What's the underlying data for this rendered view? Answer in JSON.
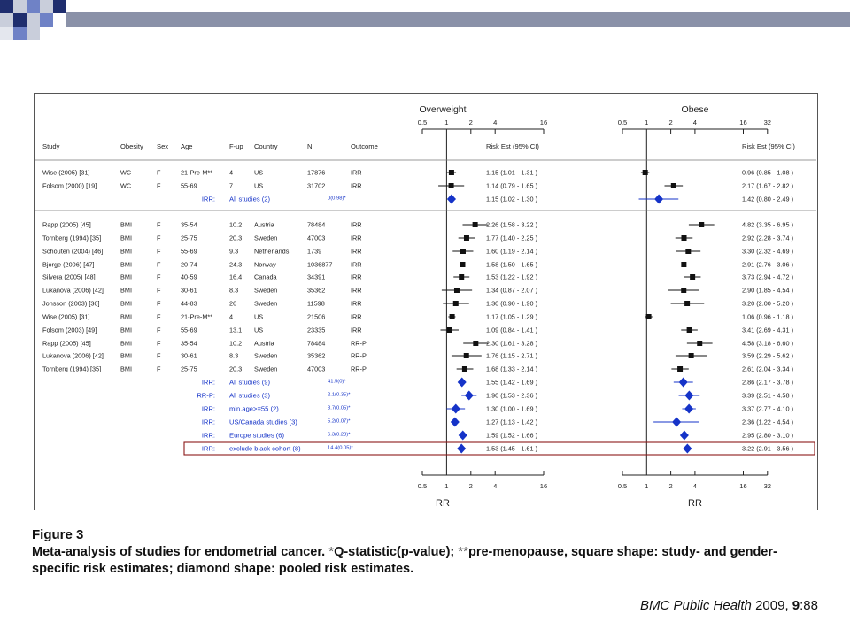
{
  "colors": {
    "slide_navy": "#1f2e6e",
    "slide_blue": "#6f82c6",
    "slide_light": "#c9cedb",
    "text_dark": "#222222",
    "pooled_blue": "#1533c8",
    "highlight_box": "#8b1a1a"
  },
  "figure": {
    "panel_titles": [
      "Overweight",
      "Obese"
    ],
    "column_headers": {
      "study": "Study",
      "obesity": "Obesity",
      "sex": "Sex",
      "age": "Age",
      "fup": "F-up",
      "country": "Country",
      "n": "N",
      "outcome": "Outcome",
      "risk_ow": "Risk Est (95% CI)",
      "risk_ob": "Risk Est (95% CI)"
    },
    "axis_label": "RR",
    "caption_title": "Figure 3",
    "caption_lead": "Meta-analysis of studies for endometrial cancer.",
    "caption_star1": "*",
    "caption_mid": "Q-statistic(p-value);",
    "caption_star2": "**",
    "caption_rest": "pre-menopause, square shape: study- and gender- specific risk estimates; diamond shape: pooled risk estimates.",
    "citation_journal": "BMC Public Health",
    "citation_year": "2009,",
    "citation_vol": "9",
    "citation_pages": ":88"
  },
  "chart_data": {
    "type": "forest",
    "x_scale": "log",
    "axis_ticks": {
      "overweight": [
        0.5,
        1,
        2,
        4,
        16
      ],
      "obese": [
        0.5,
        1,
        2,
        4,
        16,
        32
      ]
    },
    "xlabel": "RR",
    "panels": [
      "Overweight",
      "Obese"
    ],
    "rows": [
      {
        "type": "study",
        "study": "Wise (2005) [31]",
        "obesity": "WC",
        "sex": "F",
        "age": "21-Pre-M**",
        "fup": "4",
        "country": "US",
        "n": "17876",
        "outcome": "IRR",
        "ow": {
          "est": 1.15,
          "lo": 1.01,
          "hi": 1.31,
          "text": "1.15  (1.01 - 1.31 )"
        },
        "ob": {
          "est": 0.96,
          "lo": 0.85,
          "hi": 1.08,
          "text": "0.96  (0.85 - 1.08 )"
        }
      },
      {
        "type": "study",
        "study": "Folsom (2000) [19]",
        "obesity": "WC",
        "sex": "F",
        "age": "55-69",
        "fup": "7",
        "country": "US",
        "n": "31702",
        "outcome": "IRR",
        "ow": {
          "est": 1.14,
          "lo": 0.79,
          "hi": 1.65,
          "text": "1.14  (0.79 - 1.65 )"
        },
        "ob": {
          "est": 2.17,
          "lo": 1.67,
          "hi": 2.82,
          "text": "2.17  (1.67 - 2.82 )"
        }
      },
      {
        "type": "pooled",
        "prefix": "IRR:",
        "label": "All studies (2)",
        "q": "0(0.98)*",
        "ow": {
          "est": 1.15,
          "lo": 1.02,
          "hi": 1.3,
          "text": "1.15  (1.02 - 1.30 )"
        },
        "ob": {
          "est": 1.42,
          "lo": 0.8,
          "hi": 2.49,
          "text": "1.42  (0.80 - 2.49 )"
        }
      },
      {
        "type": "study",
        "study": "Rapp (2005) [45]",
        "obesity": "BMI",
        "sex": "F",
        "age": "35-54",
        "fup": "10.2",
        "country": "Austria",
        "n": "78484",
        "outcome": "IRR",
        "ow": {
          "est": 2.26,
          "lo": 1.58,
          "hi": 3.22,
          "text": "2.26  (1.58 - 3.22 )"
        },
        "ob": {
          "est": 4.82,
          "lo": 3.35,
          "hi": 6.95,
          "text": "4.82  (3.35 - 6.95 )"
        }
      },
      {
        "type": "study",
        "study": "Tornberg (1994) [35]",
        "obesity": "BMI",
        "sex": "F",
        "age": "25-75",
        "fup": "20.3",
        "country": "Sweden",
        "n": "47003",
        "outcome": "IRR",
        "ow": {
          "est": 1.77,
          "lo": 1.4,
          "hi": 2.25,
          "text": "1.77  (1.40 - 2.25 )"
        },
        "ob": {
          "est": 2.92,
          "lo": 2.28,
          "hi": 3.74,
          "text": "2.92  (2.28 - 3.74 )"
        }
      },
      {
        "type": "study",
        "study": "Schouten (2004) [46]",
        "obesity": "BMI",
        "sex": "F",
        "age": "55-69",
        "fup": "9.3",
        "country": "Netherlands",
        "n": "1739",
        "outcome": "IRR",
        "ow": {
          "est": 1.6,
          "lo": 1.19,
          "hi": 2.14,
          "text": "1.60  (1.19 - 2.14 )"
        },
        "ob": {
          "est": 3.3,
          "lo": 2.32,
          "hi": 4.69,
          "text": "3.30  (2.32 - 4.69 )"
        }
      },
      {
        "type": "study",
        "study": "Bjorge (2006) [47]",
        "obesity": "BMI",
        "sex": "F",
        "age": "20-74",
        "fup": "24.3",
        "country": "Norway",
        "n": "1036877",
        "outcome": "IRR",
        "ow": {
          "est": 1.58,
          "lo": 1.5,
          "hi": 1.65,
          "text": "1.58  (1.50 - 1.65 )"
        },
        "ob": {
          "est": 2.91,
          "lo": 2.76,
          "hi": 3.06,
          "text": "2.91  (2.76 - 3.06 )"
        }
      },
      {
        "type": "study",
        "study": "Silvera (2005) [48]",
        "obesity": "BMI",
        "sex": "F",
        "age": "40-59",
        "fup": "16.4",
        "country": "Canada",
        "n": "34391",
        "outcome": "IRR",
        "ow": {
          "est": 1.53,
          "lo": 1.22,
          "hi": 1.92,
          "text": "1.53  (1.22 - 1.92 )"
        },
        "ob": {
          "est": 3.73,
          "lo": 2.94,
          "hi": 4.72,
          "text": "3.73  (2.94 - 4.72 )"
        }
      },
      {
        "type": "study",
        "study": "Lukanova (2006) [42]",
        "obesity": "BMI",
        "sex": "F",
        "age": "30-61",
        "fup": "8.3",
        "country": "Sweden",
        "n": "35362",
        "outcome": "IRR",
        "ow": {
          "est": 1.34,
          "lo": 0.87,
          "hi": 2.07,
          "text": "1.34  (0.87 - 2.07 )"
        },
        "ob": {
          "est": 2.9,
          "lo": 1.85,
          "hi": 4.54,
          "text": "2.90  (1.85 - 4.54 )"
        }
      },
      {
        "type": "study",
        "study": "Jonsson (2003) [36]",
        "obesity": "BMI",
        "sex": "F",
        "age": "44-83",
        "fup": "26",
        "country": "Sweden",
        "n": "11598",
        "outcome": "IRR",
        "ow": {
          "est": 1.3,
          "lo": 0.9,
          "hi": 1.9,
          "text": "1.30  (0.90 - 1.90 )"
        },
        "ob": {
          "est": 3.2,
          "lo": 2.0,
          "hi": 5.2,
          "text": "3.20  (2.00 - 5.20 )"
        }
      },
      {
        "type": "study",
        "study": "Wise (2005) [31]",
        "obesity": "BMI",
        "sex": "F",
        "age": "21-Pre-M**",
        "fup": "4",
        "country": "US",
        "n": "21506",
        "outcome": "IRR",
        "ow": {
          "est": 1.17,
          "lo": 1.05,
          "hi": 1.29,
          "text": "1.17  (1.05 - 1.29 )"
        },
        "ob": {
          "est": 1.06,
          "lo": 0.96,
          "hi": 1.18,
          "text": "1.06  (0.96 - 1.18 )"
        }
      },
      {
        "type": "study",
        "study": "Folsom (2003) [49]",
        "obesity": "BMI",
        "sex": "F",
        "age": "55-69",
        "fup": "13.1",
        "country": "US",
        "n": "23335",
        "outcome": "IRR",
        "ow": {
          "est": 1.09,
          "lo": 0.84,
          "hi": 1.41,
          "text": "1.09  (0.84 - 1.41 )"
        },
        "ob": {
          "est": 3.41,
          "lo": 2.69,
          "hi": 4.31,
          "text": "3.41  (2.69 - 4.31 )"
        }
      },
      {
        "type": "study",
        "study": "Rapp (2005) [45]",
        "obesity": "BMI",
        "sex": "F",
        "age": "35-54",
        "fup": "10.2",
        "country": "Austria",
        "n": "78484",
        "outcome": "RR-P",
        "ow": {
          "est": 2.3,
          "lo": 1.61,
          "hi": 3.28,
          "text": "2.30  (1.61 - 3.28 )"
        },
        "ob": {
          "est": 4.58,
          "lo": 3.18,
          "hi": 6.6,
          "text": "4.58  (3.18 - 6.60 )"
        }
      },
      {
        "type": "study",
        "study": "Lukanova (2006) [42]",
        "obesity": "BMI",
        "sex": "F",
        "age": "30-61",
        "fup": "8.3",
        "country": "Sweden",
        "n": "35362",
        "outcome": "RR-P",
        "ow": {
          "est": 1.76,
          "lo": 1.15,
          "hi": 2.71,
          "text": "1.76  (1.15 - 2.71 )"
        },
        "ob": {
          "est": 3.59,
          "lo": 2.29,
          "hi": 5.62,
          "text": "3.59  (2.29 - 5.62 )"
        }
      },
      {
        "type": "study",
        "study": "Tornberg (1994) [35]",
        "obesity": "BMI",
        "sex": "F",
        "age": "25-75",
        "fup": "20.3",
        "country": "Sweden",
        "n": "47003",
        "outcome": "RR-P",
        "ow": {
          "est": 1.68,
          "lo": 1.33,
          "hi": 2.14,
          "text": "1.68  (1.33 - 2.14 )"
        },
        "ob": {
          "est": 2.61,
          "lo": 2.04,
          "hi": 3.34,
          "text": "2.61  (2.04 - 3.34 )"
        }
      },
      {
        "type": "pooled",
        "prefix": "IRR:",
        "label": "All studies (9)",
        "q": "41.5(0)*",
        "ow": {
          "est": 1.55,
          "lo": 1.42,
          "hi": 1.69,
          "text": "1.55  (1.42 - 1.69 )"
        },
        "ob": {
          "est": 2.86,
          "lo": 2.17,
          "hi": 3.78,
          "text": "2.86  (2.17 - 3.78 )"
        }
      },
      {
        "type": "pooled",
        "prefix": "RR-P:",
        "label": "All studies (3)",
        "q": "2.1(0.35)*",
        "ow": {
          "est": 1.9,
          "lo": 1.53,
          "hi": 2.36,
          "text": "1.90  (1.53 - 2.36 )"
        },
        "ob": {
          "est": 3.39,
          "lo": 2.51,
          "hi": 4.58,
          "text": "3.39  (2.51 - 4.58 )"
        }
      },
      {
        "type": "pooled",
        "prefix": "IRR:",
        "label": "min.age>=55 (2)",
        "q": "3.7(0.05)*",
        "ow": {
          "est": 1.3,
          "lo": 1.0,
          "hi": 1.69,
          "text": "1.30  (1.00 - 1.69 )"
        },
        "ob": {
          "est": 3.37,
          "lo": 2.77,
          "hi": 4.1,
          "text": "3.37  (2.77 - 4.10 )"
        }
      },
      {
        "type": "pooled",
        "prefix": "IRR:",
        "label": "US/Canada studies (3)",
        "q": "5.2(0.07)*",
        "ow": {
          "est": 1.27,
          "lo": 1.13,
          "hi": 1.42,
          "text": "1.27  (1.13 - 1.42 )"
        },
        "ob": {
          "est": 2.36,
          "lo": 1.22,
          "hi": 4.54,
          "text": "2.36  (1.22 - 4.54 )"
        }
      },
      {
        "type": "pooled",
        "prefix": "IRR:",
        "label": "Europe studies (6)",
        "q": "6.3(0.28)*",
        "ow": {
          "est": 1.59,
          "lo": 1.52,
          "hi": 1.66,
          "text": "1.59  (1.52 - 1.66 )"
        },
        "ob": {
          "est": 2.95,
          "lo": 2.8,
          "hi": 3.1,
          "text": "2.95  (2.80 - 3.10 )"
        }
      },
      {
        "type": "pooled",
        "prefix": "IRR:",
        "label": "exclude black cohort (8)",
        "q": "14.4(0.05)*",
        "highlight": true,
        "ow": {
          "est": 1.53,
          "lo": 1.45,
          "hi": 1.61,
          "text": "1.53  (1.45 - 1.61 )"
        },
        "ob": {
          "est": 3.22,
          "lo": 2.91,
          "hi": 3.56,
          "text": "3.22  (2.91 - 3.56 )"
        }
      }
    ]
  }
}
